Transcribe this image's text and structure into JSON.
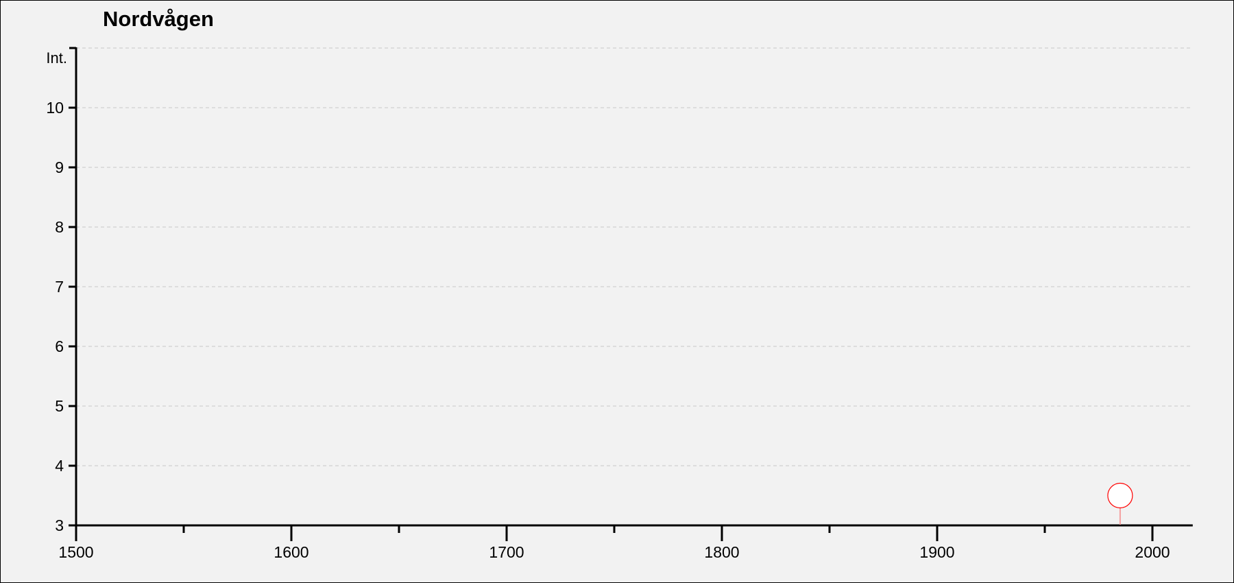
{
  "chart_data": {
    "type": "scatter",
    "title": "Nordvågen",
    "ylabel": "Int.",
    "xlim": [
      1500,
      2020
    ],
    "ylim": [
      3,
      11
    ],
    "x_ticks": [
      1500,
      1600,
      1700,
      1800,
      1900,
      2000
    ],
    "x_minor_ticks": [
      1550,
      1650,
      1750,
      1850,
      1950
    ],
    "y_ticks": [
      3,
      4,
      5,
      6,
      7,
      8,
      9,
      10
    ],
    "grid": true,
    "points": [
      {
        "x": 1985,
        "y": 3.5
      }
    ],
    "colors": {
      "marker_stroke": "#ff0000",
      "marker_fill": "#ffffff",
      "stem": "#f4a0a0",
      "grid": "#c8c8c8",
      "background": "#f2f2f2"
    }
  }
}
